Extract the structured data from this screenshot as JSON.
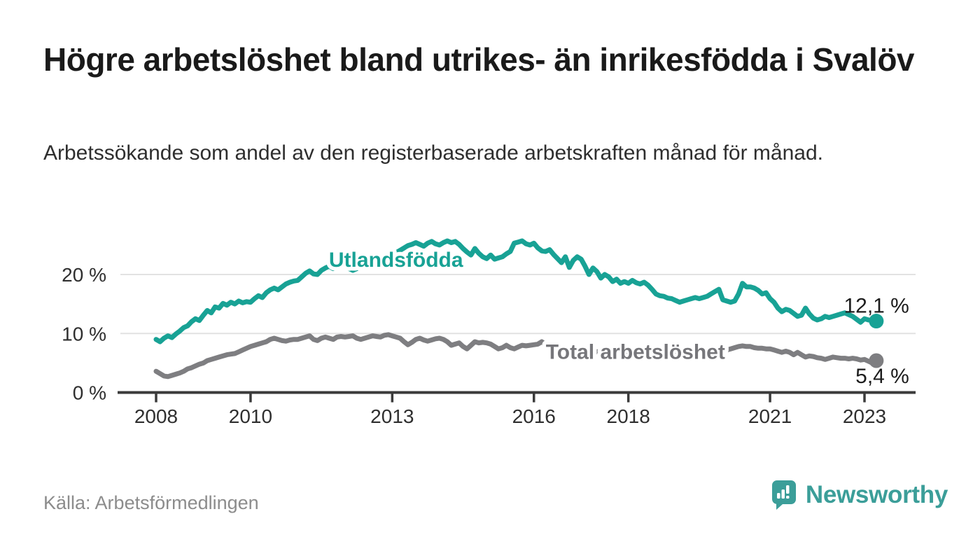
{
  "header": {
    "title": "Högre arbetslöshet bland utrikes- än inrikesfödda i Svalöv",
    "subtitle": "Arbetssökande som andel av den registerbaserade arbetskraften månad för månad."
  },
  "footer": {
    "source": "Källa: Arbetsförmedlingen",
    "brand": "Newsworthy"
  },
  "colors": {
    "teal_line": "#18a295",
    "gray_line": "#7e7e81",
    "gray_label": "#76767a",
    "title_text": "#1a1a1a",
    "annotation_text": "#1c1c1c",
    "axis_line": "#3b3b3b",
    "grid_line": "#e2e2e2",
    "tick_text": "#2f2f2f",
    "halo": "#ffffff",
    "brand_teal": "#3b9e99"
  },
  "chart_data": {
    "type": "line",
    "title": "Högre arbetslöshet bland utrikes- än inrikesfödda i Svalöv",
    "xlabel": "",
    "ylabel": "Arbetssökande som andel av den registerbaserade arbetskraften",
    "x_unit": "monthly from 2008-01 to 2023-04",
    "start_year": 2008,
    "xlim": [
      2007.2,
      2024.1
    ],
    "ylim": [
      0,
      26.5
    ],
    "grid": "horizontal",
    "legend_position": "inline-labels",
    "xticks": [
      2008,
      2010,
      2013,
      2016,
      2018,
      2021,
      2023
    ],
    "yticks": [
      {
        "value": 0,
        "label": "0 %"
      },
      {
        "value": 10,
        "label": "10 %"
      },
      {
        "value": 20,
        "label": "20 %"
      }
    ],
    "series": [
      {
        "id": "utlandsfodda",
        "name": "Utlandsfödda",
        "color": "#18a295",
        "end_label": "12,1 %",
        "end_value": 12.1,
        "label_anchor": {
          "year": 2013.08,
          "value": 22.5
        },
        "values": [
          9.0,
          8.6,
          9.2,
          9.6,
          9.3,
          9.9,
          10.4,
          11.0,
          11.3,
          12.0,
          12.5,
          12.2,
          13.1,
          13.9,
          13.5,
          14.5,
          14.3,
          15.1,
          14.8,
          15.3,
          15.0,
          15.5,
          15.2,
          15.4,
          15.3,
          15.9,
          16.4,
          16.1,
          16.9,
          17.4,
          17.7,
          17.4,
          17.9,
          18.4,
          18.7,
          18.9,
          19.0,
          19.6,
          20.2,
          20.6,
          20.1,
          20.0,
          20.7,
          21.1,
          21.4,
          21.0,
          21.3,
          21.7,
          21.5,
          21.0,
          20.7,
          21.0,
          21.4,
          21.8,
          21.5,
          22.0,
          22.4,
          22.2,
          22.6,
          23.0,
          23.3,
          23.7,
          24.1,
          24.5,
          24.9,
          25.1,
          25.4,
          25.1,
          24.8,
          25.3,
          25.6,
          25.2,
          25.0,
          25.4,
          25.7,
          25.4,
          25.6,
          25.1,
          24.4,
          23.8,
          23.3,
          24.4,
          23.6,
          23.0,
          22.7,
          23.3,
          22.6,
          22.8,
          23.0,
          23.5,
          23.9,
          25.3,
          25.5,
          25.7,
          25.2,
          25.0,
          25.3,
          24.5,
          24.0,
          23.9,
          24.2,
          23.4,
          22.7,
          22.0,
          23.0,
          21.2,
          22.4,
          23.0,
          22.6,
          21.4,
          20.0,
          21.1,
          20.5,
          19.4,
          20.0,
          19.6,
          18.8,
          19.2,
          18.5,
          18.8,
          18.5,
          19.0,
          18.6,
          18.4,
          18.7,
          18.2,
          17.5,
          16.7,
          16.4,
          16.3,
          16.0,
          15.9,
          15.6,
          15.3,
          15.5,
          15.7,
          15.9,
          16.1,
          15.9,
          16.1,
          16.3,
          16.7,
          17.1,
          17.5,
          15.7,
          15.5,
          15.3,
          15.5,
          16.7,
          18.5,
          17.9,
          17.9,
          17.7,
          17.3,
          16.7,
          16.9,
          15.9,
          15.3,
          14.3,
          13.7,
          14.1,
          13.9,
          13.4,
          12.9,
          13.1,
          14.3,
          13.3,
          12.6,
          12.3,
          12.5,
          12.9,
          12.7,
          12.9,
          13.1,
          13.3,
          13.5,
          13.2,
          12.9,
          12.4,
          11.9,
          12.5,
          12.3,
          12.2,
          12.1
        ]
      },
      {
        "id": "total",
        "name": "Total arbetslöshet",
        "color": "#7e7e81",
        "label_color": "#76767a",
        "end_label": "5,4 %",
        "end_value": 5.4,
        "label_anchor": {
          "year": 2018.15,
          "value": 6.9
        },
        "values": [
          3.6,
          3.2,
          2.8,
          2.7,
          2.9,
          3.1,
          3.3,
          3.6,
          4.0,
          4.2,
          4.5,
          4.8,
          5.0,
          5.4,
          5.6,
          5.8,
          6.0,
          6.2,
          6.4,
          6.5,
          6.6,
          6.9,
          7.2,
          7.5,
          7.8,
          8.0,
          8.2,
          8.4,
          8.6,
          9.0,
          9.2,
          9.0,
          8.8,
          8.7,
          8.9,
          9.0,
          9.0,
          9.2,
          9.4,
          9.6,
          9.0,
          8.8,
          9.2,
          9.4,
          9.2,
          9.0,
          9.4,
          9.5,
          9.4,
          9.5,
          9.6,
          9.2,
          9.0,
          9.2,
          9.4,
          9.6,
          9.5,
          9.4,
          9.7,
          9.8,
          9.6,
          9.4,
          9.2,
          8.6,
          8.1,
          8.5,
          9.0,
          9.2,
          8.9,
          8.7,
          8.9,
          9.1,
          9.2,
          9.0,
          8.6,
          8.0,
          8.2,
          8.4,
          7.8,
          7.4,
          8.0,
          8.6,
          8.4,
          8.5,
          8.4,
          8.2,
          7.8,
          7.4,
          7.6,
          8.0,
          7.6,
          7.4,
          7.7,
          8.0,
          7.9,
          8.0,
          8.1,
          8.2,
          8.6,
          8.1,
          7.9,
          7.7,
          7.5,
          7.3,
          7.4,
          7.6,
          7.5,
          7.4,
          7.4,
          7.3,
          7.2,
          7.0,
          6.9,
          7.0,
          7.1,
          7.0,
          6.9,
          6.8,
          6.9,
          7.0,
          6.9,
          6.8,
          6.7,
          6.5,
          6.4,
          6.5,
          6.6,
          6.5,
          6.4,
          6.3,
          6.4,
          6.5,
          6.4,
          6.3,
          6.2,
          6.2,
          6.3,
          6.4,
          6.5,
          6.6,
          6.6,
          6.7,
          6.8,
          6.9,
          7.0,
          7.2,
          7.4,
          7.6,
          7.8,
          7.9,
          7.8,
          7.8,
          7.6,
          7.5,
          7.5,
          7.4,
          7.4,
          7.2,
          7.0,
          6.8,
          7.0,
          6.8,
          6.4,
          6.8,
          6.4,
          6.0,
          6.2,
          6.1,
          5.9,
          5.8,
          5.6,
          5.8,
          6.0,
          5.9,
          5.8,
          5.8,
          5.7,
          5.8,
          5.7,
          5.5,
          5.6,
          5.3,
          5.0,
          5.4
        ]
      }
    ]
  }
}
